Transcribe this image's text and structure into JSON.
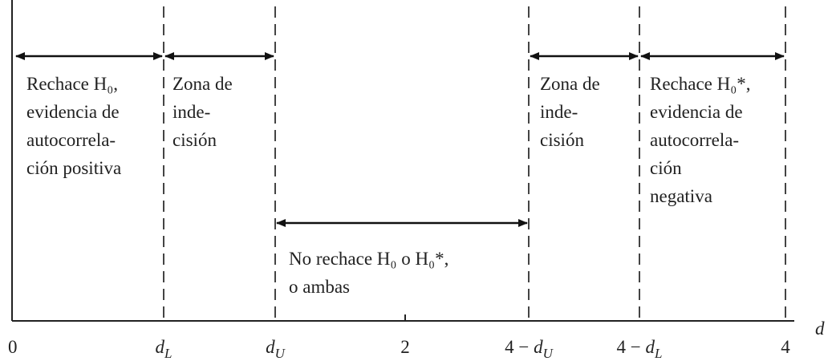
{
  "axis": {
    "label": "d",
    "ticks": [
      {
        "text": "0"
      },
      {
        "var": "d",
        "sub": "L"
      },
      {
        "var": "d",
        "sub": "U"
      },
      {
        "text": "2"
      },
      {
        "prefix": "4 − ",
        "var": "d",
        "sub": "U"
      },
      {
        "prefix": "4 − ",
        "var": "d",
        "sub": "L"
      },
      {
        "text": "4"
      }
    ]
  },
  "regions": [
    {
      "lines": [
        "Rechace H₀,",
        "evidencia de",
        "autocorrela-",
        "ción positiva"
      ]
    },
    {
      "lines": [
        "Zona de",
        "inde-",
        "cisión"
      ]
    },
    {
      "lines": [
        "No rechace H₀ o H₀*,",
        "o ambas"
      ]
    },
    {
      "lines": [
        "Zona de",
        "inde-",
        "cisión"
      ]
    },
    {
      "lines": [
        "Rechace H₀*,",
        "evidencia de",
        "autocorrela-",
        "ción",
        "negativa"
      ]
    }
  ]
}
